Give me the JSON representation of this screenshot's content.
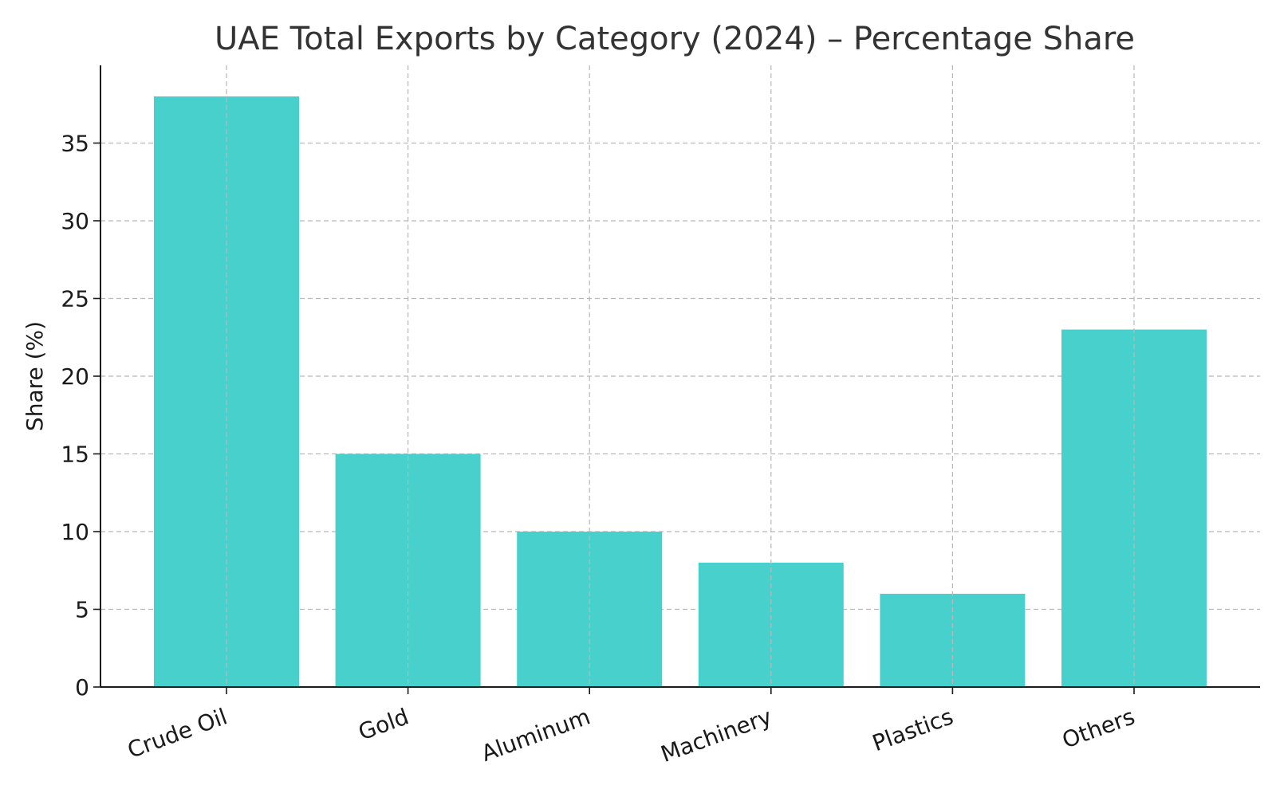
{
  "chart_data": {
    "type": "bar",
    "title": "UAE Total Exports by Category (2024) – Percentage Share",
    "xlabel": "",
    "ylabel": "Share (%)",
    "categories": [
      "Crude Oil",
      "Gold",
      "Aluminum",
      "Machinery",
      "Plastics",
      "Others"
    ],
    "values": [
      38,
      15,
      10,
      8,
      6,
      23
    ],
    "ylim": [
      0,
      40
    ],
    "yticks": [
      0,
      5,
      10,
      15,
      20,
      25,
      30,
      35
    ],
    "grid": true,
    "bar_color": "#48D1CC",
    "x_tick_rotation": "slanted"
  }
}
